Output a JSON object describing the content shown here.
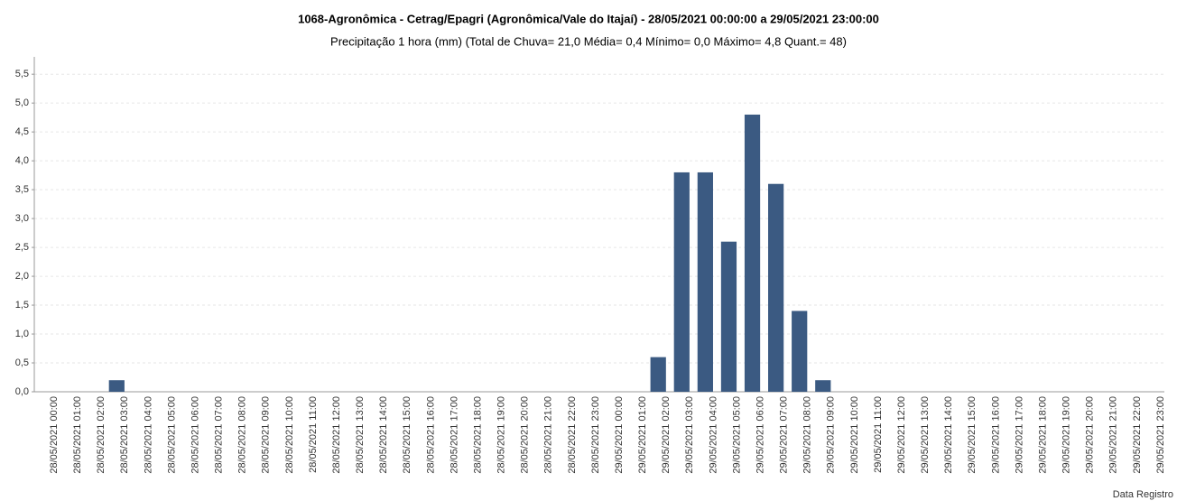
{
  "chart_data": {
    "type": "bar",
    "title": "1068-Agronômica - Cetrag/Epagri (Agronômica/Vale do Itajaí) - 28/05/2021 00:00:00 a 29/05/2021 23:00:00",
    "subtitle": "Precipitação 1 hora (mm) (Total de Chuva= 21,0  Média= 0,4  Mínimo= 0,0  Máximo= 4,8  Quant.= 48)",
    "x_label": "Data Registro",
    "categories": [
      "28/05/2021 00:00",
      "28/05/2021 01:00",
      "28/05/2021 02:00",
      "28/05/2021 03:00",
      "28/05/2021 04:00",
      "28/05/2021 05:00",
      "28/05/2021 06:00",
      "28/05/2021 07:00",
      "28/05/2021 08:00",
      "28/05/2021 09:00",
      "28/05/2021 10:00",
      "28/05/2021 11:00",
      "28/05/2021 12:00",
      "28/05/2021 13:00",
      "28/05/2021 14:00",
      "28/05/2021 15:00",
      "28/05/2021 16:00",
      "28/05/2021 17:00",
      "28/05/2021 18:00",
      "28/05/2021 19:00",
      "28/05/2021 20:00",
      "28/05/2021 21:00",
      "28/05/2021 22:00",
      "28/05/2021 23:00",
      "29/05/2021 00:00",
      "29/05/2021 01:00",
      "29/05/2021 02:00",
      "29/05/2021 03:00",
      "29/05/2021 04:00",
      "29/05/2021 05:00",
      "29/05/2021 06:00",
      "29/05/2021 07:00",
      "29/05/2021 08:00",
      "29/05/2021 09:00",
      "29/05/2021 10:00",
      "29/05/2021 11:00",
      "29/05/2021 12:00",
      "29/05/2021 13:00",
      "29/05/2021 14:00",
      "29/05/2021 15:00",
      "29/05/2021 16:00",
      "29/05/2021 17:00",
      "29/05/2021 18:00",
      "29/05/2021 19:00",
      "29/05/2021 20:00",
      "29/05/2021 21:00",
      "29/05/2021 22:00",
      "29/05/2021 23:00"
    ],
    "values": [
      0,
      0,
      0,
      0.2,
      0,
      0,
      0,
      0,
      0,
      0,
      0,
      0,
      0,
      0,
      0,
      0,
      0,
      0,
      0,
      0,
      0,
      0,
      0,
      0,
      0,
      0,
      0.6,
      3.8,
      3.8,
      2.6,
      4.8,
      3.6,
      1.4,
      0.2,
      0,
      0,
      0,
      0,
      0,
      0,
      0,
      0,
      0,
      0,
      0,
      0,
      0,
      0
    ],
    "color": "#3b5a82",
    "ylim": [
      0,
      5.8
    ],
    "yticks": [
      {
        "value": 0,
        "label": "0,0"
      },
      {
        "value": 0.5,
        "label": "0,5"
      },
      {
        "value": 1,
        "label": "1,0"
      },
      {
        "value": 1.5,
        "label": "1,5"
      },
      {
        "value": 2,
        "label": "2,0"
      },
      {
        "value": 2.5,
        "label": "2,5"
      },
      {
        "value": 3,
        "label": "3,0"
      },
      {
        "value": 3.5,
        "label": "3,5"
      },
      {
        "value": 4,
        "label": "4,0"
      },
      {
        "value": 4.5,
        "label": "4,5"
      },
      {
        "value": 5,
        "label": "5,0"
      },
      {
        "value": 5.5,
        "label": "5,5"
      }
    ],
    "grid": true
  }
}
